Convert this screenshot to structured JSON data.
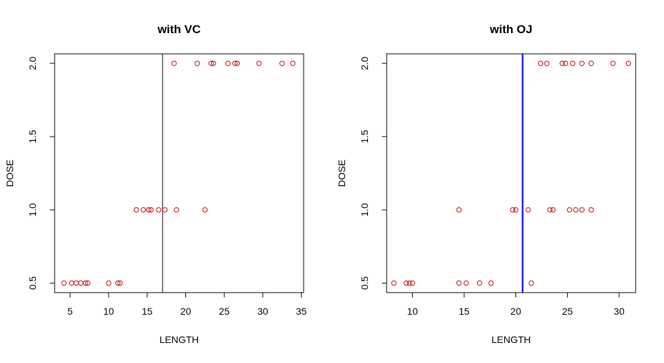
{
  "colors": {
    "points": "#cc0000",
    "panel1_line": "#000000",
    "panel2_line": "#0000ff",
    "axis": "#000000"
  },
  "chart_data": [
    {
      "type": "scatter",
      "title": "with VC",
      "xlabel": "LENGTH",
      "ylabel": "DOSE",
      "xlim": [
        3.0,
        35.3
      ],
      "ylim": [
        0.435,
        2.065
      ],
      "xticks": [
        5,
        10,
        15,
        20,
        25,
        30,
        35
      ],
      "xtick_labels": [
        "5",
        "10",
        "15",
        "20",
        "25",
        "30",
        "35"
      ],
      "yticks": [
        0.5,
        1.0,
        1.5,
        2.0
      ],
      "ytick_labels": [
        "0.5",
        "1.0",
        "1.5",
        "2.0"
      ],
      "vline": 17.0,
      "vline_color": "#000000",
      "point_color": "#cc0000",
      "points": [
        [
          4.2,
          0.5
        ],
        [
          5.2,
          0.5
        ],
        [
          5.8,
          0.5
        ],
        [
          6.4,
          0.5
        ],
        [
          7.0,
          0.5
        ],
        [
          7.3,
          0.5
        ],
        [
          10.0,
          0.5
        ],
        [
          11.2,
          0.5
        ],
        [
          11.5,
          0.5
        ],
        [
          13.6,
          1.0
        ],
        [
          14.5,
          1.0
        ],
        [
          15.2,
          1.0
        ],
        [
          15.5,
          1.0
        ],
        [
          16.5,
          1.0
        ],
        [
          17.3,
          1.0
        ],
        [
          18.8,
          1.0
        ],
        [
          22.5,
          1.0
        ],
        [
          18.5,
          2.0
        ],
        [
          21.5,
          2.0
        ],
        [
          23.3,
          2.0
        ],
        [
          23.6,
          2.0
        ],
        [
          25.5,
          2.0
        ],
        [
          26.4,
          2.0
        ],
        [
          26.7,
          2.0
        ],
        [
          29.5,
          2.0
        ],
        [
          32.5,
          2.0
        ],
        [
          33.9,
          2.0
        ]
      ]
    },
    {
      "type": "scatter",
      "title": "with OJ",
      "xlabel": "LENGTH",
      "ylabel": "DOSE",
      "xlim": [
        7.5,
        31.6
      ],
      "ylim": [
        0.435,
        2.065
      ],
      "xticks": [
        10,
        15,
        20,
        25,
        30
      ],
      "xtick_labels": [
        "10",
        "15",
        "20",
        "25",
        "30"
      ],
      "yticks": [
        0.5,
        1.0,
        1.5,
        2.0
      ],
      "ytick_labels": [
        "0.5",
        "1.0",
        "1.5",
        "2.0"
      ],
      "vline": 20.66,
      "vline_color": "#0000ff",
      "point_color": "#cc0000",
      "points": [
        [
          8.2,
          0.5
        ],
        [
          9.4,
          0.5
        ],
        [
          9.7,
          0.5
        ],
        [
          10.0,
          0.5
        ],
        [
          14.5,
          0.5
        ],
        [
          15.2,
          0.5
        ],
        [
          16.5,
          0.5
        ],
        [
          17.6,
          0.5
        ],
        [
          21.5,
          0.5
        ],
        [
          14.5,
          1.0
        ],
        [
          19.7,
          1.0
        ],
        [
          20.0,
          1.0
        ],
        [
          21.2,
          1.0
        ],
        [
          23.3,
          1.0
        ],
        [
          23.6,
          1.0
        ],
        [
          25.2,
          1.0
        ],
        [
          25.8,
          1.0
        ],
        [
          26.4,
          1.0
        ],
        [
          27.3,
          1.0
        ],
        [
          22.4,
          2.0
        ],
        [
          23.0,
          2.0
        ],
        [
          24.5,
          2.0
        ],
        [
          24.8,
          2.0
        ],
        [
          25.5,
          2.0
        ],
        [
          26.4,
          2.0
        ],
        [
          27.3,
          2.0
        ],
        [
          29.4,
          2.0
        ],
        [
          30.9,
          2.0
        ]
      ]
    }
  ]
}
